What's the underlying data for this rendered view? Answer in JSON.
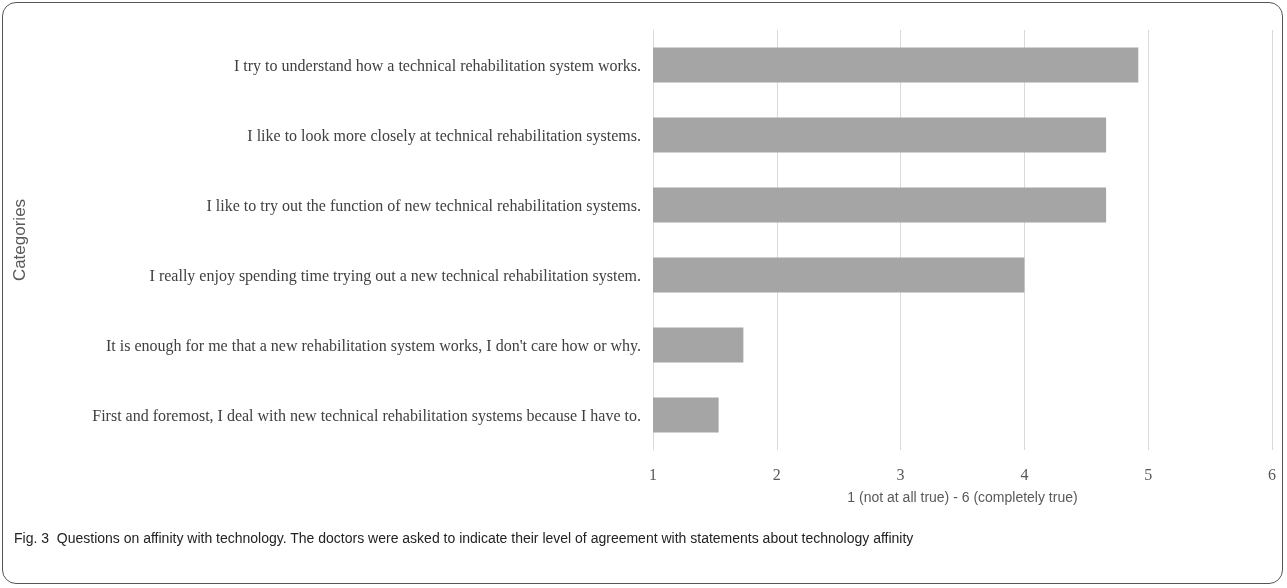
{
  "chart_data": {
    "type": "bar",
    "orientation": "horizontal",
    "categories": [
      "I try to understand how a technical rehabilitation system works.",
      "I like to look more closely at technical rehabilitation systems.",
      "I like to try out the function of new technical rehabilitation systems.",
      "I really enjoy spending time trying out a new technical rehabilitation system.",
      "It is enough for me that a new rehabilitation system works, I don't care how or why.",
      "First and foremost, I deal with new technical rehabilitation systems because I have to."
    ],
    "values": [
      4.92,
      4.66,
      4.66,
      4.0,
      1.73,
      1.53
    ],
    "color": "#a5a5a5",
    "xlim": [
      1,
      6
    ],
    "xticks": [
      1,
      2,
      3,
      4,
      5,
      6
    ],
    "xlabel": "1 (not at all true) - 6 (completely true)",
    "ylabel": "Categories",
    "grid": "x",
    "annotations": [
      "Fig. 3  Questions on affinity with technology. The doctors were asked to indicate their level of agreement with statements about technology affinity"
    ]
  }
}
